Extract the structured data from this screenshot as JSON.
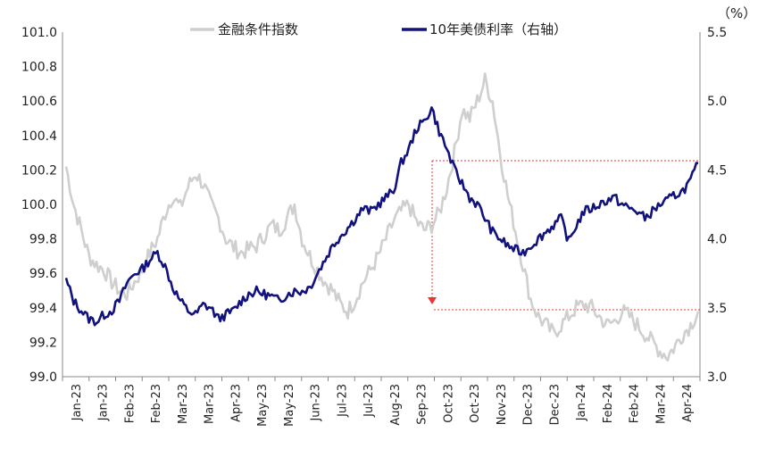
{
  "chart_data": {
    "type": "line",
    "left_axis": {
      "ylim": [
        99.0,
        101.0
      ],
      "ticks": [
        "99.0",
        "99.2",
        "99.4",
        "99.6",
        "99.8",
        "100.0",
        "100.2",
        "100.4",
        "100.6",
        "100.8",
        "101.0"
      ]
    },
    "right_axis": {
      "unit_label": "（%）",
      "ylim": [
        3.0,
        5.5
      ],
      "ticks": [
        "3.0",
        "3.5",
        "4.0",
        "4.5",
        "5.0",
        "5.5"
      ]
    },
    "x_tick_labels": [
      "Jan-23",
      "Jan-23",
      "Feb-23",
      "Feb-23",
      "Mar-23",
      "Mar-23",
      "Apr-23",
      "May-23",
      "May-23",
      "Jun-23",
      "Jul-23",
      "Jul-23",
      "Aug-23",
      "Sep-23",
      "Oct-23",
      "Oct-23",
      "Nov-23",
      "Dec-23",
      "Dec-23",
      "Jan-24",
      "Feb-24",
      "Feb-24",
      "Mar-24",
      "Apr-24"
    ],
    "series": [
      {
        "name": "金融条件指数",
        "axis": "left",
        "color": "#cfcfcf",
        "values": [
          100.22,
          100.0,
          99.85,
          99.7,
          99.65,
          99.62,
          99.55,
          99.5,
          99.48,
          99.55,
          99.62,
          99.72,
          99.8,
          99.95,
          100.05,
          99.98,
          100.1,
          100.18,
          100.12,
          100.0,
          99.92,
          99.8,
          99.75,
          99.72,
          99.74,
          99.76,
          99.82,
          99.88,
          99.85,
          99.92,
          100.0,
          99.8,
          99.7,
          99.62,
          99.55,
          99.5,
          99.42,
          99.38,
          99.45,
          99.55,
          99.62,
          99.7,
          99.8,
          99.9,
          99.96,
          100.0,
          99.9,
          99.85,
          99.88,
          99.95,
          100.1,
          100.3,
          100.55,
          100.5,
          100.6,
          100.72,
          100.6,
          100.3,
          100.05,
          99.85,
          99.65,
          99.45,
          99.35,
          99.3,
          99.25,
          99.3,
          99.35,
          99.4,
          99.42,
          99.4,
          99.35,
          99.3,
          99.32,
          99.38,
          99.35,
          99.3,
          99.25,
          99.2,
          99.15,
          99.12,
          99.18,
          99.25,
          99.3,
          99.38
        ],
        "legend_label": "金融条件指数"
      },
      {
        "name": "10年美债利率（右轴）",
        "axis": "right",
        "color": "#12127e",
        "values": [
          3.7,
          3.55,
          3.48,
          3.42,
          3.4,
          3.45,
          3.48,
          3.55,
          3.68,
          3.75,
          3.78,
          3.85,
          3.9,
          3.8,
          3.65,
          3.55,
          3.48,
          3.45,
          3.52,
          3.5,
          3.42,
          3.45,
          3.48,
          3.55,
          3.6,
          3.62,
          3.6,
          3.58,
          3.55,
          3.6,
          3.62,
          3.62,
          3.65,
          3.75,
          3.85,
          3.95,
          4.02,
          4.08,
          4.15,
          4.22,
          4.2,
          4.25,
          4.3,
          4.35,
          4.55,
          4.65,
          4.8,
          4.85,
          4.95,
          4.78,
          4.65,
          4.5,
          4.4,
          4.3,
          4.25,
          4.15,
          4.05,
          4.0,
          3.95,
          3.92,
          3.9,
          3.95,
          4.0,
          4.05,
          4.1,
          4.15,
          3.98,
          4.1,
          4.2,
          4.22,
          4.25,
          4.28,
          4.3,
          4.25,
          4.22,
          4.2,
          4.15,
          4.2,
          4.25,
          4.28,
          4.32,
          4.35,
          4.42,
          4.55
        ],
        "legend_label": "10年美债利率（右轴）"
      }
    ],
    "legend": "top-center"
  }
}
